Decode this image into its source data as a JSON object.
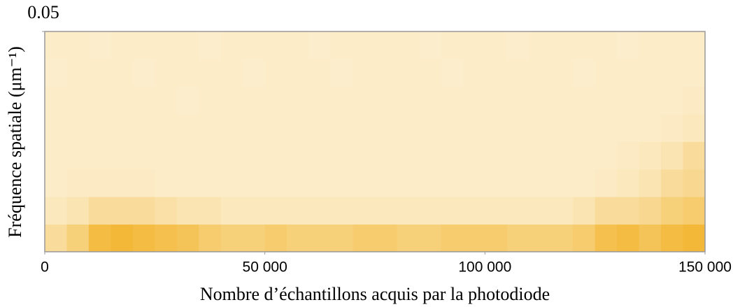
{
  "chart_data": {
    "type": "heatmap",
    "xlabel": "Nombre d’échantillons acquis par la photodiode",
    "ylabel": "Fréquence spatiale (μm⁻¹)",
    "xlim": [
      0,
      150000
    ],
    "xticks": [
      0,
      {
        "value": 50000,
        "label": "50 000"
      },
      {
        "value": 100000,
        "label": "100 000"
      },
      {
        "value": 150000,
        "label": "150 000"
      }
    ],
    "ylim": [
      0,
      0.05
    ],
    "yticks": [
      0.05
    ],
    "colormap": [
      "#fdf4de",
      "#f0a400"
    ],
    "xbins": [
      0,
      5000,
      10000,
      15000,
      20000,
      25000,
      30000,
      35000,
      40000,
      45000,
      50000,
      55000,
      60000,
      65000,
      70000,
      75000,
      80000,
      85000,
      90000,
      95000,
      100000,
      105000,
      110000,
      115000,
      120000,
      125000,
      130000,
      135000,
      140000,
      145000,
      150000
    ],
    "ybins": [
      0,
      0.00625,
      0.0125,
      0.01875,
      0.025,
      0.03125,
      0.0375,
      0.04375,
      0.05
    ],
    "z": [
      [
        0.3,
        0.45,
        0.7,
        0.75,
        0.7,
        0.65,
        0.6,
        0.5,
        0.45,
        0.45,
        0.5,
        0.45,
        0.45,
        0.45,
        0.5,
        0.5,
        0.45,
        0.45,
        0.5,
        0.5,
        0.5,
        0.45,
        0.45,
        0.45,
        0.5,
        0.65,
        0.7,
        0.6,
        0.7,
        0.75
      ],
      [
        0.15,
        0.2,
        0.3,
        0.3,
        0.3,
        0.25,
        0.2,
        0.2,
        0.15,
        0.15,
        0.15,
        0.15,
        0.15,
        0.15,
        0.15,
        0.15,
        0.15,
        0.15,
        0.15,
        0.15,
        0.15,
        0.15,
        0.15,
        0.15,
        0.2,
        0.3,
        0.3,
        0.35,
        0.45,
        0.5
      ],
      [
        0.1,
        0.12,
        0.12,
        0.12,
        0.12,
        0.1,
        0.1,
        0.1,
        0.1,
        0.1,
        0.1,
        0.1,
        0.1,
        0.1,
        0.1,
        0.1,
        0.1,
        0.1,
        0.1,
        0.1,
        0.1,
        0.1,
        0.1,
        0.1,
        0.1,
        0.12,
        0.15,
        0.2,
        0.3,
        0.35
      ],
      [
        0.1,
        0.1,
        0.1,
        0.1,
        0.1,
        0.1,
        0.1,
        0.1,
        0.1,
        0.1,
        0.1,
        0.1,
        0.1,
        0.1,
        0.1,
        0.1,
        0.1,
        0.1,
        0.1,
        0.1,
        0.1,
        0.1,
        0.1,
        0.1,
        0.1,
        0.1,
        0.12,
        0.15,
        0.2,
        0.3
      ],
      [
        0.1,
        0.1,
        0.1,
        0.1,
        0.1,
        0.1,
        0.1,
        0.1,
        0.1,
        0.1,
        0.1,
        0.1,
        0.1,
        0.1,
        0.1,
        0.1,
        0.1,
        0.1,
        0.1,
        0.1,
        0.1,
        0.1,
        0.1,
        0.1,
        0.1,
        0.1,
        0.1,
        0.1,
        0.12,
        0.15
      ],
      [
        0.1,
        0.1,
        0.1,
        0.1,
        0.1,
        0.1,
        0.08,
        0.1,
        0.1,
        0.1,
        0.1,
        0.1,
        0.1,
        0.1,
        0.1,
        0.1,
        0.1,
        0.1,
        0.1,
        0.1,
        0.1,
        0.1,
        0.1,
        0.1,
        0.1,
        0.1,
        0.1,
        0.1,
        0.1,
        0.12
      ],
      [
        0.08,
        0.1,
        0.1,
        0.1,
        0.08,
        0.1,
        0.1,
        0.1,
        0.1,
        0.08,
        0.1,
        0.1,
        0.1,
        0.08,
        0.1,
        0.1,
        0.1,
        0.1,
        0.08,
        0.1,
        0.1,
        0.1,
        0.1,
        0.1,
        0.08,
        0.1,
        0.1,
        0.1,
        0.1,
        0.1
      ],
      [
        0.1,
        0.1,
        0.08,
        0.1,
        0.1,
        0.1,
        0.1,
        0.08,
        0.1,
        0.1,
        0.1,
        0.1,
        0.08,
        0.1,
        0.1,
        0.1,
        0.1,
        0.08,
        0.1,
        0.1,
        0.1,
        0.08,
        0.1,
        0.1,
        0.1,
        0.1,
        0.08,
        0.1,
        0.1,
        0.1
      ]
    ]
  }
}
